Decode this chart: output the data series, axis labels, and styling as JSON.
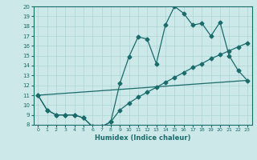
{
  "xlabel": "Humidex (Indice chaleur)",
  "xlim": [
    -0.5,
    23.5
  ],
  "ylim": [
    8,
    20
  ],
  "xticks": [
    0,
    1,
    2,
    3,
    4,
    5,
    6,
    7,
    8,
    9,
    10,
    11,
    12,
    13,
    14,
    15,
    16,
    17,
    18,
    19,
    20,
    21,
    22,
    23
  ],
  "yticks": [
    8,
    9,
    10,
    11,
    12,
    13,
    14,
    15,
    16,
    17,
    18,
    19,
    20
  ],
  "bg_color": "#cce8e8",
  "line_color": "#1a6b6b",
  "grid_color": "#aad4d4",
  "line1_x": [
    0,
    1,
    2,
    3,
    4,
    5,
    6,
    7,
    8,
    9,
    10,
    11,
    12,
    13,
    14,
    15,
    16,
    17,
    18,
    19,
    20,
    21,
    22,
    23
  ],
  "line1_y": [
    11.0,
    9.5,
    9.0,
    9.0,
    9.0,
    8.7,
    7.8,
    7.8,
    8.3,
    12.2,
    14.9,
    16.9,
    16.7,
    14.2,
    18.1,
    20.0,
    19.3,
    18.1,
    18.3,
    17.0,
    18.4,
    15.0,
    13.5,
    12.5
  ],
  "line2_x": [
    0,
    1,
    2,
    3,
    4,
    5,
    6,
    7,
    8,
    9,
    10,
    11,
    12,
    13,
    14,
    15,
    16,
    17,
    18,
    19,
    20,
    21,
    22,
    23
  ],
  "line2_y": [
    11.0,
    9.5,
    9.0,
    9.0,
    9.0,
    8.7,
    7.8,
    7.8,
    8.3,
    9.5,
    10.2,
    10.8,
    11.3,
    11.8,
    12.3,
    12.8,
    13.3,
    13.8,
    14.2,
    14.7,
    15.1,
    15.5,
    15.9,
    16.3
  ],
  "line3_x": [
    0,
    23
  ],
  "line3_y": [
    11.0,
    12.5
  ],
  "markersize": 2.5,
  "linewidth": 0.9
}
